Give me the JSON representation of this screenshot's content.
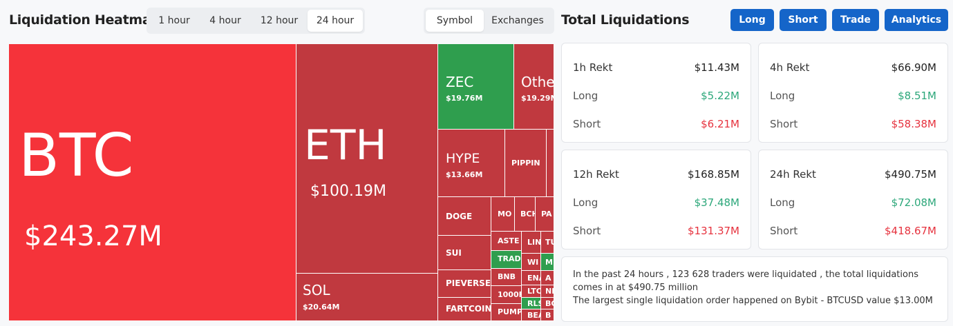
{
  "heatmap": {
    "title": "Liquidation Heatmap",
    "time_tabs": [
      "1 hour",
      "4 hour",
      "12 hour",
      "24 hour"
    ],
    "active_time_tab": "24 hour",
    "view_tabs": [
      "Symbol",
      "Exchanges"
    ],
    "active_view_tab": "Symbol",
    "cells": [
      {
        "symbol": "BTC",
        "value": "$243.27M"
      },
      {
        "symbol": "ETH",
        "value": "$100.19M"
      },
      {
        "symbol": "SOL",
        "value": "$20.64M"
      },
      {
        "symbol": "ZEC",
        "value": "$19.76M"
      },
      {
        "symbol": "Othe",
        "value": "$19.29M"
      },
      {
        "symbol": "HYPE",
        "value": "$13.66M"
      },
      {
        "symbol": "PIPPIN",
        "value": ""
      },
      {
        "symbol": "DOGE",
        "value": ""
      },
      {
        "symbol": "SUI",
        "value": ""
      },
      {
        "symbol": "PIEVERSE",
        "value": ""
      },
      {
        "symbol": "FARTCOIN",
        "value": ""
      },
      {
        "symbol": "MO",
        "value": ""
      },
      {
        "symbol": "BCH",
        "value": ""
      },
      {
        "symbol": "PA",
        "value": ""
      },
      {
        "symbol": "ASTE",
        "value": ""
      },
      {
        "symbol": "TRAD",
        "value": ""
      },
      {
        "symbol": "BNB",
        "value": ""
      },
      {
        "symbol": "1000F",
        "value": ""
      },
      {
        "symbol": "PUMP",
        "value": ""
      },
      {
        "symbol": "LIN",
        "value": ""
      },
      {
        "symbol": "TU",
        "value": ""
      },
      {
        "symbol": "WI",
        "value": ""
      },
      {
        "symbol": "M",
        "value": ""
      },
      {
        "symbol": "ENA",
        "value": ""
      },
      {
        "symbol": "A",
        "value": ""
      },
      {
        "symbol": "LTC",
        "value": ""
      },
      {
        "symbol": "NI",
        "value": ""
      },
      {
        "symbol": "RLS",
        "value": ""
      },
      {
        "symbol": "BC",
        "value": ""
      },
      {
        "symbol": "BEA",
        "value": ""
      },
      {
        "symbol": "B",
        "value": ""
      }
    ],
    "colors": {
      "loss": "#c0393f",
      "top": "#f5333a",
      "gain": "#2f9e4e"
    }
  },
  "totals": {
    "title": "Total Liquidations",
    "buttons": [
      "Long",
      "Short",
      "Trade",
      "Analytics"
    ],
    "cards": [
      {
        "label": "1h Rekt",
        "total": "$11.43M",
        "long_label": "Long",
        "long": "$5.22M",
        "short_label": "Short",
        "short": "$6.21M"
      },
      {
        "label": "4h Rekt",
        "total": "$66.90M",
        "long_label": "Long",
        "long": "$8.51M",
        "short_label": "Short",
        "short": "$58.38M"
      },
      {
        "label": "12h Rekt",
        "total": "$168.85M",
        "long_label": "Long",
        "long": "$37.48M",
        "short_label": "Short",
        "short": "$131.37M"
      },
      {
        "label": "24h Rekt",
        "total": "$490.75M",
        "long_label": "Long",
        "long": "$72.08M",
        "short_label": "Short",
        "short": "$418.67M"
      }
    ],
    "summary_line1": "In the past 24 hours , 123 628 traders were liquidated , the total liquidations comes in at $490.75 million",
    "summary_line2": "The largest single liquidation order happened on Bybit - BTCUSD value $13.00M"
  }
}
